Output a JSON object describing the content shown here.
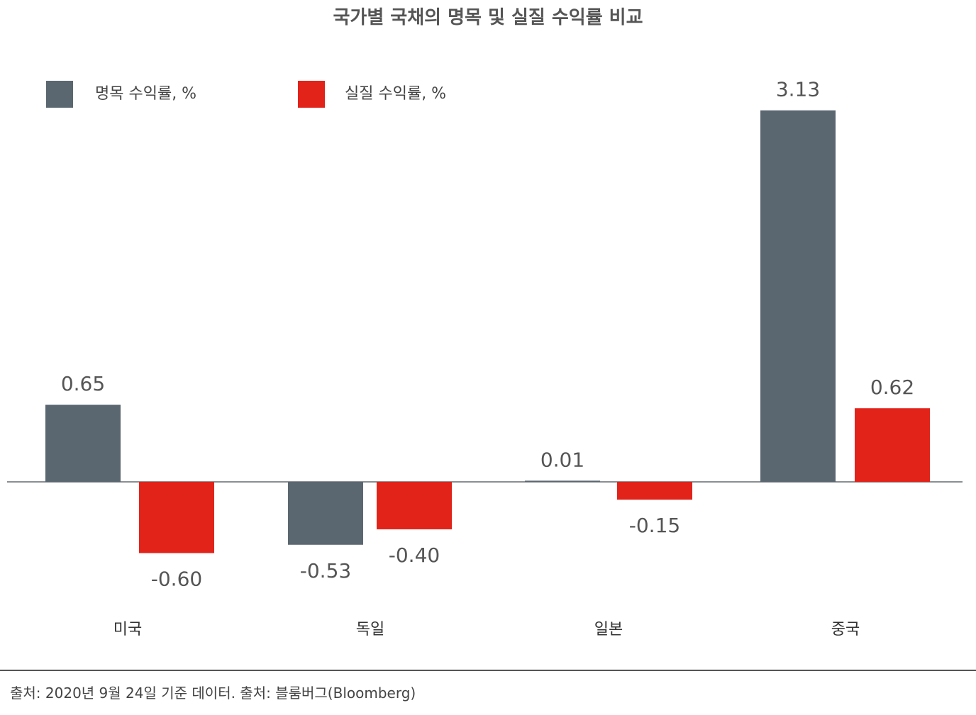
{
  "chart_data": {
    "type": "bar",
    "title": "국가별 국채의 명목 및 실질 수익률 비교",
    "categories": [
      "미국",
      "독일",
      "일본",
      "중국"
    ],
    "series": [
      {
        "name": "명목 수익률, %",
        "color": "#5b6770",
        "values": [
          0.65,
          -0.53,
          0.01,
          3.13
        ],
        "labels": [
          "0.65",
          "-0.53",
          "0.01",
          "3.13"
        ]
      },
      {
        "name": "실질 수익률, %",
        "color": "#e2231a",
        "values": [
          -0.6,
          -0.4,
          -0.15,
          0.62
        ],
        "labels": [
          "-0.60",
          "-0.40",
          "-0.15",
          "0.62"
        ]
      }
    ],
    "legend_position": "top-left",
    "grid": false,
    "ylim": [
      -1.0,
      3.3
    ]
  },
  "footer": {
    "source_note": "출처: 2020년 9월 24일 기준 데이터. 출처: 블룸버그(Bloomberg)"
  }
}
